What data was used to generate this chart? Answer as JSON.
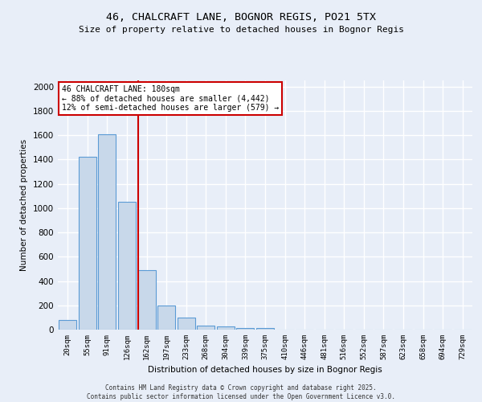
{
  "title_line1": "46, CHALCRAFT LANE, BOGNOR REGIS, PO21 5TX",
  "title_line2": "Size of property relative to detached houses in Bognor Regis",
  "xlabel": "Distribution of detached houses by size in Bognor Regis",
  "ylabel": "Number of detached properties",
  "categories": [
    "20sqm",
    "55sqm",
    "91sqm",
    "126sqm",
    "162sqm",
    "197sqm",
    "233sqm",
    "268sqm",
    "304sqm",
    "339sqm",
    "375sqm",
    "410sqm",
    "446sqm",
    "481sqm",
    "516sqm",
    "552sqm",
    "587sqm",
    "623sqm",
    "658sqm",
    "694sqm",
    "729sqm"
  ],
  "values": [
    80,
    1420,
    1610,
    1050,
    490,
    200,
    100,
    35,
    25,
    15,
    15,
    0,
    0,
    0,
    0,
    0,
    0,
    0,
    0,
    0,
    0
  ],
  "bar_color": "#c8d8ea",
  "bar_edge_color": "#5b9bd5",
  "vline_index": 4,
  "vline_color": "#cc0000",
  "annotation_text": "46 CHALCRAFT LANE: 180sqm\n← 88% of detached houses are smaller (4,442)\n12% of semi-detached houses are larger (579) →",
  "annotation_box_facecolor": "#ffffff",
  "annotation_box_edgecolor": "#cc0000",
  "ylim": [
    0,
    2050
  ],
  "yticks": [
    0,
    200,
    400,
    600,
    800,
    1000,
    1200,
    1400,
    1600,
    1800,
    2000
  ],
  "bg_color": "#e8eef8",
  "plot_bg_color": "#e8eef8",
  "grid_color": "#ffffff",
  "footer_line1": "Contains HM Land Registry data © Crown copyright and database right 2025.",
  "footer_line2": "Contains public sector information licensed under the Open Government Licence v3.0."
}
